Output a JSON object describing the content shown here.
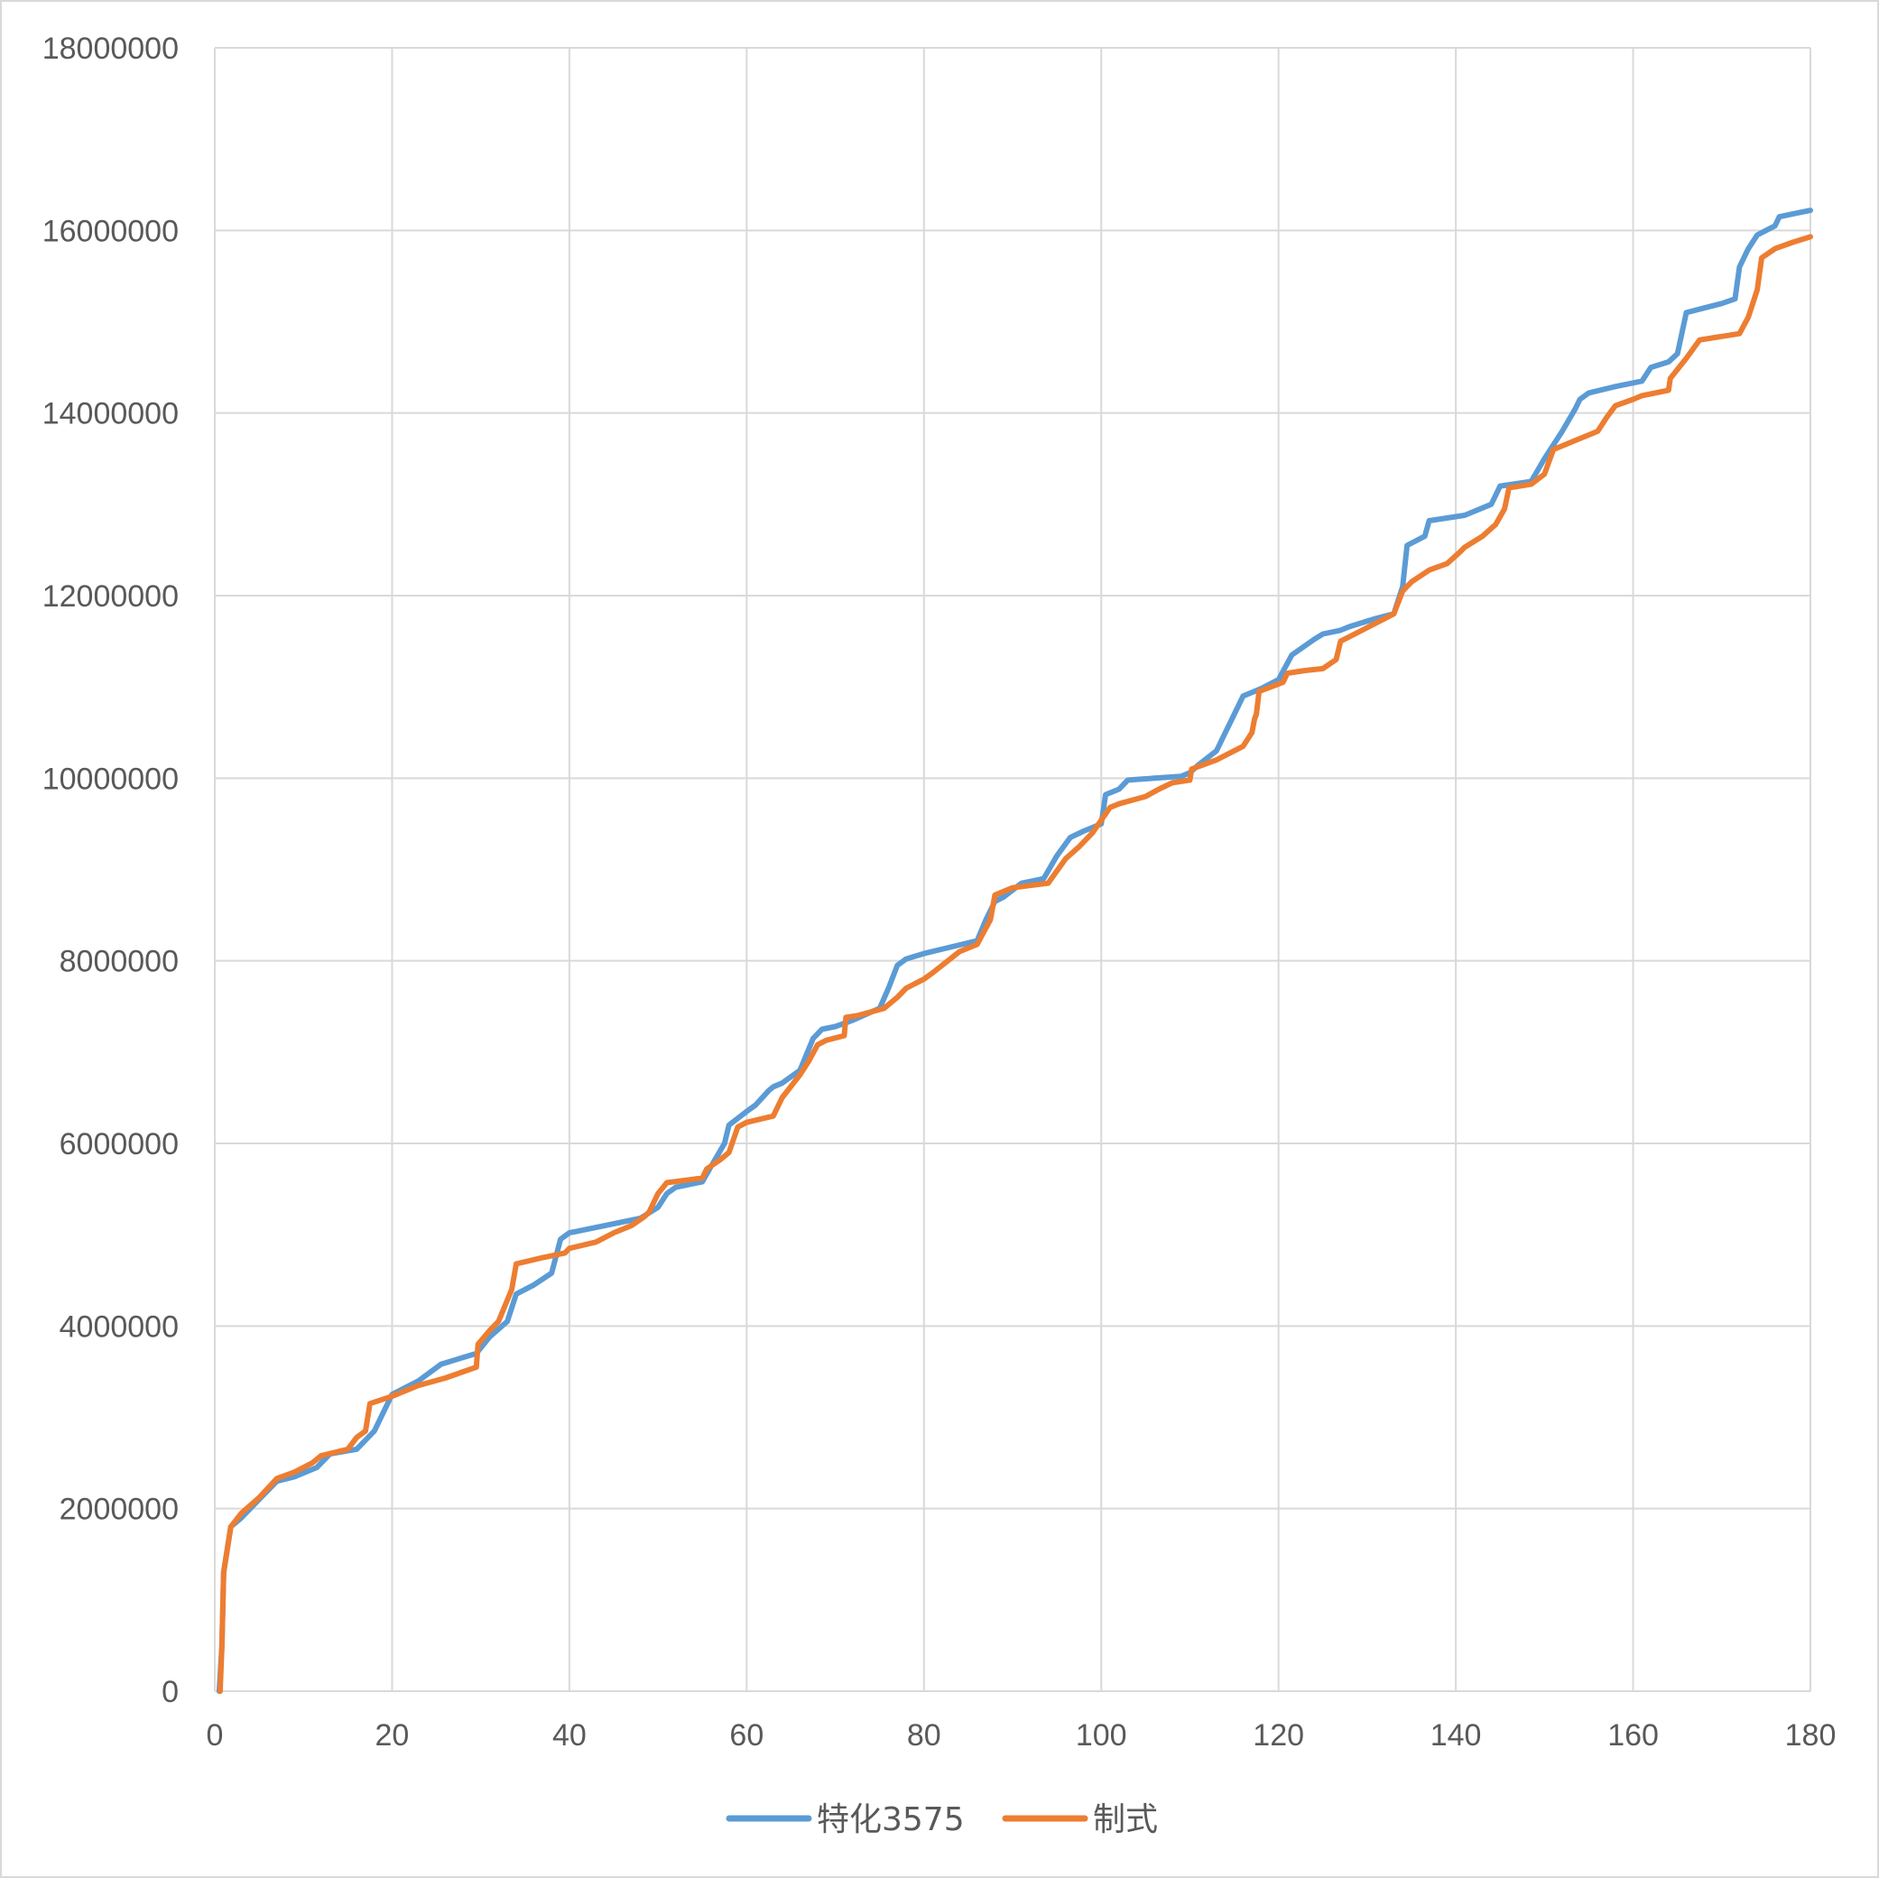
{
  "chart_data": {
    "type": "line",
    "title": "",
    "xlabel": "",
    "ylabel": "",
    "xlim": [
      0,
      180
    ],
    "ylim": [
      0,
      18000000
    ],
    "x_ticks": [
      0,
      20,
      40,
      60,
      80,
      100,
      120,
      140,
      160,
      180
    ],
    "y_ticks": [
      0,
      2000000,
      4000000,
      6000000,
      8000000,
      10000000,
      12000000,
      14000000,
      16000000,
      18000000
    ],
    "x_tick_labels": [
      "0",
      "20",
      "40",
      "60",
      "80",
      "100",
      "120",
      "140",
      "160",
      "180"
    ],
    "y_tick_labels": [
      "0",
      "2000000",
      "4000000",
      "6000000",
      "8000000",
      "10000000",
      "12000000",
      "14000000",
      "16000000",
      "18000000"
    ],
    "grid": true,
    "legend_position": "bottom",
    "series": [
      {
        "name": "特化3575",
        "color": "#5b9bd5",
        "points": [
          [
            0.5,
            0
          ],
          [
            0.8,
            500000
          ],
          [
            1.0,
            1300000
          ],
          [
            1.8,
            1800000
          ],
          [
            3,
            1900000
          ],
          [
            5,
            2100000
          ],
          [
            7,
            2300000
          ],
          [
            9,
            2350000
          ],
          [
            11.5,
            2450000
          ],
          [
            13,
            2600000
          ],
          [
            16,
            2650000
          ],
          [
            18,
            2850000
          ],
          [
            20,
            3250000
          ],
          [
            23,
            3400000
          ],
          [
            25.5,
            3580000
          ],
          [
            29.5,
            3700000
          ],
          [
            31,
            3880000
          ],
          [
            33,
            4050000
          ],
          [
            34,
            4350000
          ],
          [
            36,
            4450000
          ],
          [
            38,
            4580000
          ],
          [
            39,
            4950000
          ],
          [
            40,
            5020000
          ],
          [
            44,
            5100000
          ],
          [
            48,
            5180000
          ],
          [
            50,
            5300000
          ],
          [
            51,
            5450000
          ],
          [
            52,
            5520000
          ],
          [
            55,
            5580000
          ],
          [
            56,
            5750000
          ],
          [
            57.5,
            6000000
          ],
          [
            58,
            6200000
          ],
          [
            60,
            6350000
          ],
          [
            61,
            6420000
          ],
          [
            62.5,
            6580000
          ],
          [
            63,
            6620000
          ],
          [
            64,
            6660000
          ],
          [
            66,
            6800000
          ],
          [
            67.5,
            7150000
          ],
          [
            68.5,
            7250000
          ],
          [
            70,
            7280000
          ],
          [
            72,
            7350000
          ],
          [
            75,
            7480000
          ],
          [
            76,
            7700000
          ],
          [
            77,
            7950000
          ],
          [
            78,
            8020000
          ],
          [
            80,
            8080000
          ],
          [
            83,
            8150000
          ],
          [
            86,
            8220000
          ],
          [
            87,
            8450000
          ],
          [
            88,
            8650000
          ],
          [
            89,
            8700000
          ],
          [
            91,
            8850000
          ],
          [
            93.5,
            8900000
          ],
          [
            95,
            9150000
          ],
          [
            96.5,
            9350000
          ],
          [
            98,
            9420000
          ],
          [
            99,
            9460000
          ],
          [
            100,
            9500000
          ],
          [
            100.5,
            9820000
          ],
          [
            102,
            9880000
          ],
          [
            103,
            9980000
          ],
          [
            106,
            10000000
          ],
          [
            109,
            10020000
          ],
          [
            110,
            10060000
          ],
          [
            111,
            10150000
          ],
          [
            113,
            10300000
          ],
          [
            114,
            10500000
          ],
          [
            115,
            10700000
          ],
          [
            116,
            10900000
          ],
          [
            118,
            10980000
          ],
          [
            120,
            11080000
          ],
          [
            121.5,
            11350000
          ],
          [
            124,
            11520000
          ],
          [
            125,
            11580000
          ],
          [
            127,
            11620000
          ],
          [
            128,
            11660000
          ],
          [
            131,
            11750000
          ],
          [
            133,
            11800000
          ],
          [
            134,
            12100000
          ],
          [
            134.5,
            12550000
          ],
          [
            136.5,
            12650000
          ],
          [
            137,
            12820000
          ],
          [
            139,
            12850000
          ],
          [
            141,
            12880000
          ],
          [
            144,
            13000000
          ],
          [
            145,
            13200000
          ],
          [
            148.5,
            13250000
          ],
          [
            150,
            13500000
          ],
          [
            152,
            13800000
          ],
          [
            153.5,
            14050000
          ],
          [
            154,
            14150000
          ],
          [
            155,
            14220000
          ],
          [
            158,
            14290000
          ],
          [
            161,
            14350000
          ],
          [
            162,
            14500000
          ],
          [
            164,
            14560000
          ],
          [
            165,
            14650000
          ],
          [
            166,
            15100000
          ],
          [
            168,
            15150000
          ],
          [
            170,
            15200000
          ],
          [
            171.5,
            15250000
          ],
          [
            172,
            15600000
          ],
          [
            173,
            15800000
          ],
          [
            174,
            15950000
          ],
          [
            175,
            16000000
          ],
          [
            176,
            16050000
          ],
          [
            176.5,
            16150000
          ],
          [
            178,
            16180000
          ],
          [
            180,
            16220000
          ]
        ]
      },
      {
        "name": "制式",
        "color": "#ed7d31",
        "points": [
          [
            0.6,
            0
          ],
          [
            0.8,
            500000
          ],
          [
            1.0,
            1300000
          ],
          [
            1.8,
            1800000
          ],
          [
            3,
            1950000
          ],
          [
            5,
            2120000
          ],
          [
            7,
            2330000
          ],
          [
            9,
            2400000
          ],
          [
            11,
            2500000
          ],
          [
            12,
            2580000
          ],
          [
            15,
            2650000
          ],
          [
            16,
            2780000
          ],
          [
            17,
            2850000
          ],
          [
            17.5,
            3150000
          ],
          [
            20,
            3230000
          ],
          [
            23,
            3350000
          ],
          [
            26,
            3430000
          ],
          [
            29.5,
            3550000
          ],
          [
            29.7,
            3800000
          ],
          [
            31,
            3950000
          ],
          [
            32,
            4050000
          ],
          [
            33.5,
            4400000
          ],
          [
            34,
            4680000
          ],
          [
            37,
            4750000
          ],
          [
            39.5,
            4800000
          ],
          [
            40,
            4850000
          ],
          [
            43,
            4920000
          ],
          [
            45,
            5020000
          ],
          [
            47,
            5100000
          ],
          [
            48.5,
            5200000
          ],
          [
            49,
            5250000
          ],
          [
            50,
            5450000
          ],
          [
            51,
            5570000
          ],
          [
            55,
            5620000
          ],
          [
            55.5,
            5720000
          ],
          [
            57,
            5820000
          ],
          [
            58,
            5900000
          ],
          [
            59,
            6180000
          ],
          [
            60,
            6230000
          ],
          [
            63,
            6300000
          ],
          [
            64,
            6500000
          ],
          [
            66,
            6750000
          ],
          [
            67,
            6900000
          ],
          [
            68,
            7080000
          ],
          [
            69,
            7130000
          ],
          [
            71,
            7180000
          ],
          [
            71.2,
            7380000
          ],
          [
            72.5,
            7400000
          ],
          [
            75.5,
            7480000
          ],
          [
            77,
            7600000
          ],
          [
            78,
            7700000
          ],
          [
            80,
            7800000
          ],
          [
            81,
            7870000
          ],
          [
            84,
            8100000
          ],
          [
            86,
            8180000
          ],
          [
            87.5,
            8450000
          ],
          [
            88,
            8720000
          ],
          [
            90,
            8800000
          ],
          [
            94,
            8850000
          ],
          [
            96,
            9120000
          ],
          [
            97.5,
            9250000
          ],
          [
            99,
            9400000
          ],
          [
            101,
            9680000
          ],
          [
            102,
            9720000
          ],
          [
            105,
            9800000
          ],
          [
            106.5,
            9880000
          ],
          [
            108,
            9950000
          ],
          [
            110,
            9980000
          ],
          [
            110.2,
            10100000
          ],
          [
            113,
            10200000
          ],
          [
            116,
            10350000
          ],
          [
            117,
            10500000
          ],
          [
            117.3,
            10650000
          ],
          [
            117.5,
            10700000
          ],
          [
            117.8,
            10950000
          ],
          [
            120.5,
            11050000
          ],
          [
            121,
            11150000
          ],
          [
            123,
            11180000
          ],
          [
            125,
            11200000
          ],
          [
            126.5,
            11300000
          ],
          [
            127,
            11500000
          ],
          [
            129,
            11600000
          ],
          [
            133,
            11800000
          ],
          [
            134,
            12050000
          ],
          [
            135,
            12150000
          ],
          [
            137,
            12280000
          ],
          [
            139,
            12350000
          ],
          [
            140.5,
            12480000
          ],
          [
            141,
            12530000
          ],
          [
            143,
            12650000
          ],
          [
            144.5,
            12780000
          ],
          [
            145.5,
            12950000
          ],
          [
            146,
            13180000
          ],
          [
            148.5,
            13220000
          ],
          [
            150,
            13330000
          ],
          [
            151,
            13600000
          ],
          [
            153,
            13680000
          ],
          [
            156,
            13800000
          ],
          [
            157,
            13950000
          ],
          [
            158,
            14080000
          ],
          [
            160,
            14150000
          ],
          [
            161,
            14190000
          ],
          [
            164,
            14250000
          ],
          [
            164.2,
            14380000
          ],
          [
            166,
            14600000
          ],
          [
            167.5,
            14800000
          ],
          [
            172,
            14870000
          ],
          [
            173,
            15050000
          ],
          [
            174,
            15350000
          ],
          [
            174.5,
            15700000
          ],
          [
            176,
            15800000
          ],
          [
            178,
            15870000
          ],
          [
            180,
            15930000
          ]
        ]
      }
    ]
  }
}
